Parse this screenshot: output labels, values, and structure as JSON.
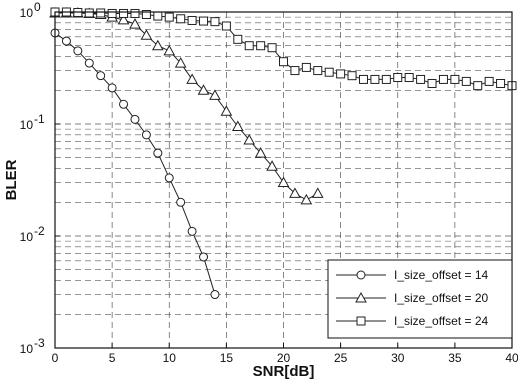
{
  "chart_data": {
    "type": "line",
    "xlabel": "SNR[dB]",
    "ylabel": "BLER",
    "xlim": [
      0,
      40
    ],
    "ylim": [
      0.001,
      1
    ],
    "yscale": "log",
    "grid": true,
    "legend_position": "bottom-right",
    "x_ticks": [
      0,
      5,
      10,
      15,
      20,
      25,
      30,
      35,
      40
    ],
    "x_tick_labels": [
      "0",
      "5",
      "10",
      "15",
      "20",
      "25",
      "30",
      "35",
      "40"
    ],
    "y_ticks": [
      0.001,
      0.01,
      0.1,
      1
    ],
    "y_tick_labels": [
      {
        "base": "10",
        "exp": "-3"
      },
      {
        "base": "10",
        "exp": "-2"
      },
      {
        "base": "10",
        "exp": "-1"
      },
      {
        "base": "10",
        "exp": "0"
      }
    ],
    "series": [
      {
        "name": "I_size_offset = 14",
        "marker": "circle",
        "x": [
          0,
          1,
          2,
          3,
          4,
          5,
          6,
          7,
          8,
          9,
          10,
          11,
          12,
          13,
          14
        ],
        "y": [
          0.65,
          0.55,
          0.45,
          0.35,
          0.27,
          0.21,
          0.15,
          0.11,
          0.08,
          0.055,
          0.033,
          0.02,
          0.011,
          0.0065,
          0.003
        ]
      },
      {
        "name": "I_size_offset = 20",
        "marker": "triangle",
        "x": [
          0,
          1,
          2,
          3,
          4,
          5,
          6,
          7,
          8,
          9,
          10,
          11,
          12,
          13,
          14,
          15,
          16,
          17,
          18,
          19,
          20,
          21,
          22,
          23
        ],
        "y": [
          0.98,
          0.98,
          0.98,
          0.97,
          0.95,
          0.9,
          0.85,
          0.78,
          0.62,
          0.5,
          0.45,
          0.35,
          0.25,
          0.2,
          0.18,
          0.13,
          0.095,
          0.072,
          0.055,
          0.042,
          0.03,
          0.024,
          0.021,
          0.024
        ]
      },
      {
        "name": "I_size_offset = 24",
        "marker": "square",
        "x": [
          0,
          1,
          2,
          3,
          4,
          5,
          6,
          7,
          8,
          9,
          10,
          11,
          12,
          13,
          14,
          15,
          16,
          17,
          18,
          19,
          20,
          21,
          22,
          23,
          24,
          25,
          26,
          27,
          28,
          29,
          30,
          31,
          32,
          33,
          34,
          35,
          36,
          37,
          38,
          39,
          40
        ],
        "y": [
          1.0,
          1.0,
          0.99,
          0.98,
          0.98,
          0.97,
          0.97,
          0.97,
          0.95,
          0.92,
          0.9,
          0.87,
          0.84,
          0.83,
          0.82,
          0.75,
          0.57,
          0.5,
          0.5,
          0.48,
          0.36,
          0.3,
          0.32,
          0.3,
          0.29,
          0.28,
          0.27,
          0.25,
          0.25,
          0.25,
          0.26,
          0.26,
          0.25,
          0.23,
          0.25,
          0.25,
          0.24,
          0.22,
          0.24,
          0.23,
          0.22
        ]
      }
    ]
  }
}
